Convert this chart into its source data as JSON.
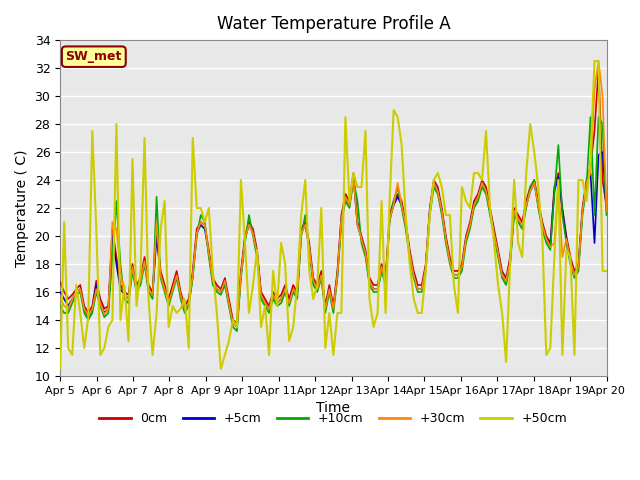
{
  "title": "Water Temperature Profile A",
  "xlabel": "Time",
  "ylabel": "Temperature ( C)",
  "ylim": [
    10,
    34
  ],
  "xlim": [
    0,
    15
  ],
  "xtick_labels": [
    "Apr 5",
    "Apr 6",
    "Apr 7",
    "Apr 8",
    "Apr 9",
    "Apr 10",
    "Apr 11",
    "Apr 12",
    "Apr 13",
    "Apr 14",
    "Apr 15",
    "Apr 16",
    "Apr 17",
    "Apr 18",
    "Apr 19",
    "Apr 20"
  ],
  "ytick_values": [
    10,
    12,
    14,
    16,
    18,
    20,
    22,
    24,
    26,
    28,
    30,
    32,
    34
  ],
  "legend_label": "SW_met",
  "series_labels": [
    "0cm",
    "+5cm",
    "+10cm",
    "+30cm",
    "+50cm"
  ],
  "series_colors": [
    "#cc0000",
    "#0000cc",
    "#00aa00",
    "#ff8800",
    "#cccc00"
  ],
  "line_widths": [
    1.2,
    1.2,
    1.2,
    1.2,
    1.5
  ],
  "bg_color": "#e8e8e8",
  "grid_color": "#ffffff",
  "t_0cm": [
    16.7,
    16.0,
    15.5,
    15.8,
    16.2,
    16.5,
    15.0,
    14.5,
    15.0,
    16.8,
    15.5,
    14.8,
    15.0,
    20.5,
    18.5,
    16.5,
    16.0,
    15.8,
    18.0,
    16.5,
    17.0,
    18.5,
    16.5,
    16.0,
    20.3,
    17.5,
    16.5,
    15.5,
    16.5,
    17.5,
    16.0,
    15.0,
    15.5,
    17.5,
    20.5,
    21.0,
    20.8,
    19.0,
    17.0,
    16.5,
    16.2,
    17.0,
    15.5,
    14.0,
    13.8,
    17.5,
    20.0,
    21.0,
    20.5,
    19.0,
    16.0,
    15.5,
    15.0,
    16.0,
    15.5,
    15.8,
    16.5,
    15.5,
    16.5,
    16.0,
    20.5,
    21.0,
    19.5,
    17.0,
    16.5,
    17.5,
    15.0,
    16.5,
    15.0,
    17.5,
    21.5,
    23.0,
    22.5,
    24.5,
    21.0,
    20.0,
    19.0,
    17.0,
    16.5,
    16.5,
    18.0,
    17.0,
    21.5,
    22.5,
    23.0,
    22.5,
    21.0,
    19.0,
    17.5,
    16.5,
    16.5,
    18.0,
    22.0,
    24.0,
    23.5,
    22.0,
    20.0,
    18.5,
    17.5,
    17.5,
    18.0,
    20.0,
    21.0,
    22.5,
    23.0,
    24.0,
    23.5,
    22.0,
    20.5,
    19.0,
    17.5,
    17.0,
    18.5,
    22.0,
    21.5,
    21.0,
    22.5,
    23.5,
    24.0,
    22.5,
    21.0,
    20.0,
    19.5,
    23.5,
    24.5,
    22.0,
    20.0,
    18.5,
    17.5,
    18.0,
    22.0,
    24.0,
    25.0,
    27.5,
    32.0,
    24.0,
    22.0
  ],
  "t_5cm": [
    16.0,
    15.5,
    15.0,
    15.5,
    16.0,
    16.2,
    14.8,
    14.2,
    14.8,
    16.5,
    15.2,
    14.5,
    14.8,
    20.0,
    18.0,
    16.2,
    15.8,
    15.5,
    17.8,
    16.2,
    16.8,
    18.2,
    16.2,
    15.8,
    20.0,
    17.2,
    16.2,
    15.2,
    16.2,
    17.2,
    15.8,
    14.8,
    15.2,
    17.2,
    20.2,
    20.8,
    20.5,
    18.8,
    16.8,
    16.2,
    16.0,
    16.8,
    15.2,
    13.8,
    13.5,
    17.2,
    19.8,
    20.8,
    20.2,
    18.8,
    15.8,
    15.2,
    14.8,
    15.8,
    15.2,
    15.5,
    16.2,
    15.2,
    16.2,
    15.8,
    20.2,
    20.8,
    19.2,
    16.8,
    16.2,
    17.2,
    14.8,
    16.2,
    14.8,
    17.2,
    21.2,
    22.8,
    22.2,
    24.2,
    20.8,
    19.8,
    18.8,
    16.8,
    16.2,
    16.2,
    17.8,
    16.8,
    21.2,
    22.2,
    22.8,
    22.2,
    20.8,
    18.8,
    17.2,
    16.2,
    16.2,
    17.8,
    21.8,
    23.8,
    23.2,
    21.8,
    19.8,
    18.2,
    17.2,
    17.2,
    17.8,
    19.8,
    20.8,
    22.2,
    22.8,
    23.8,
    23.2,
    21.8,
    20.2,
    18.8,
    17.2,
    16.8,
    18.2,
    21.8,
    21.2,
    20.8,
    22.2,
    23.2,
    23.8,
    22.2,
    20.8,
    19.8,
    19.2,
    23.2,
    24.2,
    21.8,
    19.8,
    18.2,
    17.2,
    17.8,
    21.8,
    23.8,
    24.5,
    19.5,
    25.8,
    26.0,
    21.8
  ],
  "t_10cm": [
    15.0,
    14.5,
    14.5,
    15.2,
    15.8,
    16.0,
    14.5,
    14.0,
    14.5,
    16.0,
    15.0,
    14.2,
    14.5,
    18.5,
    22.5,
    18.0,
    15.5,
    15.2,
    17.5,
    16.0,
    16.5,
    18.0,
    16.0,
    15.5,
    22.8,
    17.0,
    16.0,
    15.0,
    16.0,
    17.0,
    15.5,
    14.5,
    15.0,
    17.0,
    20.0,
    21.5,
    21.0,
    18.5,
    16.5,
    16.0,
    15.8,
    16.5,
    15.0,
    13.5,
    13.2,
    17.0,
    19.5,
    21.5,
    20.0,
    18.5,
    15.5,
    15.0,
    14.5,
    15.5,
    15.0,
    15.2,
    16.0,
    15.0,
    16.0,
    15.5,
    20.0,
    21.5,
    19.0,
    16.5,
    16.0,
    17.0,
    14.5,
    16.0,
    14.5,
    17.0,
    21.0,
    22.5,
    22.0,
    24.0,
    22.5,
    19.5,
    18.5,
    16.5,
    16.0,
    16.0,
    17.5,
    16.5,
    21.0,
    22.5,
    23.5,
    22.0,
    20.5,
    18.5,
    17.0,
    16.0,
    16.0,
    17.5,
    21.5,
    23.5,
    23.0,
    21.5,
    19.5,
    18.0,
    17.0,
    17.0,
    17.5,
    19.5,
    20.5,
    22.0,
    22.5,
    23.5,
    23.0,
    21.5,
    20.0,
    18.5,
    17.0,
    16.5,
    18.0,
    21.5,
    21.0,
    20.5,
    22.0,
    23.5,
    24.0,
    22.0,
    20.5,
    19.5,
    19.0,
    23.0,
    26.5,
    21.5,
    19.5,
    18.0,
    17.0,
    17.5,
    21.5,
    23.5,
    28.5,
    21.5,
    28.5,
    28.0,
    21.5
  ],
  "t_30cm": [
    15.5,
    15.0,
    14.8,
    15.5,
    16.0,
    16.2,
    14.8,
    14.3,
    14.8,
    16.2,
    15.2,
    14.4,
    14.8,
    21.0,
    20.5,
    17.5,
    15.8,
    15.5,
    17.8,
    16.2,
    16.8,
    18.2,
    16.2,
    15.8,
    21.0,
    17.2,
    16.2,
    15.2,
    16.2,
    17.2,
    15.8,
    14.8,
    15.2,
    17.2,
    20.2,
    21.0,
    20.8,
    18.8,
    16.8,
    16.2,
    16.0,
    16.8,
    15.2,
    13.8,
    13.5,
    17.2,
    19.8,
    20.8,
    20.2,
    18.8,
    15.8,
    15.2,
    14.8,
    15.8,
    15.2,
    15.5,
    16.2,
    15.2,
    16.2,
    15.8,
    20.2,
    20.8,
    19.2,
    16.8,
    16.2,
    17.2,
    14.8,
    16.2,
    14.8,
    17.2,
    21.2,
    22.8,
    22.2,
    24.2,
    20.8,
    19.8,
    18.8,
    16.8,
    16.2,
    16.2,
    17.8,
    16.8,
    21.2,
    22.2,
    23.8,
    22.2,
    20.8,
    18.8,
    17.2,
    16.2,
    16.2,
    17.8,
    21.8,
    23.8,
    23.2,
    21.8,
    19.8,
    18.2,
    17.2,
    17.2,
    17.8,
    19.8,
    20.8,
    22.2,
    22.8,
    23.8,
    23.2,
    21.8,
    20.2,
    18.8,
    17.2,
    16.8,
    18.2,
    21.8,
    21.2,
    20.8,
    22.2,
    23.2,
    23.8,
    22.2,
    20.8,
    19.8,
    19.2,
    19.5,
    24.0,
    18.5,
    19.8,
    18.2,
    17.2,
    17.8,
    21.8,
    23.8,
    24.5,
    30.5,
    32.5,
    30.0,
    21.8
  ],
  "t_50cm": [
    10.5,
    21.0,
    12.0,
    11.5,
    16.5,
    14.5,
    12.0,
    14.2,
    27.5,
    20.5,
    11.5,
    12.0,
    13.5,
    14.0,
    28.0,
    14.0,
    16.5,
    12.5,
    25.5,
    15.0,
    17.5,
    27.0,
    15.5,
    11.5,
    14.5,
    20.5,
    22.5,
    13.5,
    15.0,
    14.5,
    14.8,
    15.5,
    12.0,
    27.0,
    22.0,
    22.0,
    21.0,
    22.0,
    17.5,
    14.5,
    10.5,
    11.5,
    12.5,
    14.0,
    13.5,
    24.0,
    19.5,
    14.5,
    16.5,
    19.0,
    13.5,
    15.0,
    11.5,
    17.5,
    15.0,
    19.5,
    18.0,
    12.5,
    13.5,
    16.5,
    21.5,
    24.0,
    17.5,
    15.5,
    16.5,
    22.0,
    12.0,
    14.5,
    11.5,
    14.5,
    14.5,
    28.5,
    22.5,
    24.5,
    23.5,
    23.5,
    27.5,
    15.5,
    13.5,
    14.5,
    22.5,
    14.5,
    22.5,
    29.0,
    28.5,
    26.5,
    21.5,
    18.0,
    15.5,
    14.5,
    14.5,
    17.5,
    21.5,
    24.0,
    24.5,
    23.5,
    21.5,
    21.5,
    16.5,
    14.5,
    23.5,
    22.5,
    22.0,
    24.5,
    24.5,
    24.0,
    27.5,
    22.0,
    19.5,
    16.5,
    14.5,
    11.0,
    18.0,
    24.0,
    19.5,
    18.5,
    24.5,
    28.0,
    26.0,
    23.5,
    20.0,
    11.5,
    12.0,
    18.5,
    24.0,
    11.5,
    19.0,
    18.5,
    11.5,
    24.0,
    24.0,
    22.5,
    25.5,
    32.5,
    32.5,
    17.5,
    17.5
  ]
}
